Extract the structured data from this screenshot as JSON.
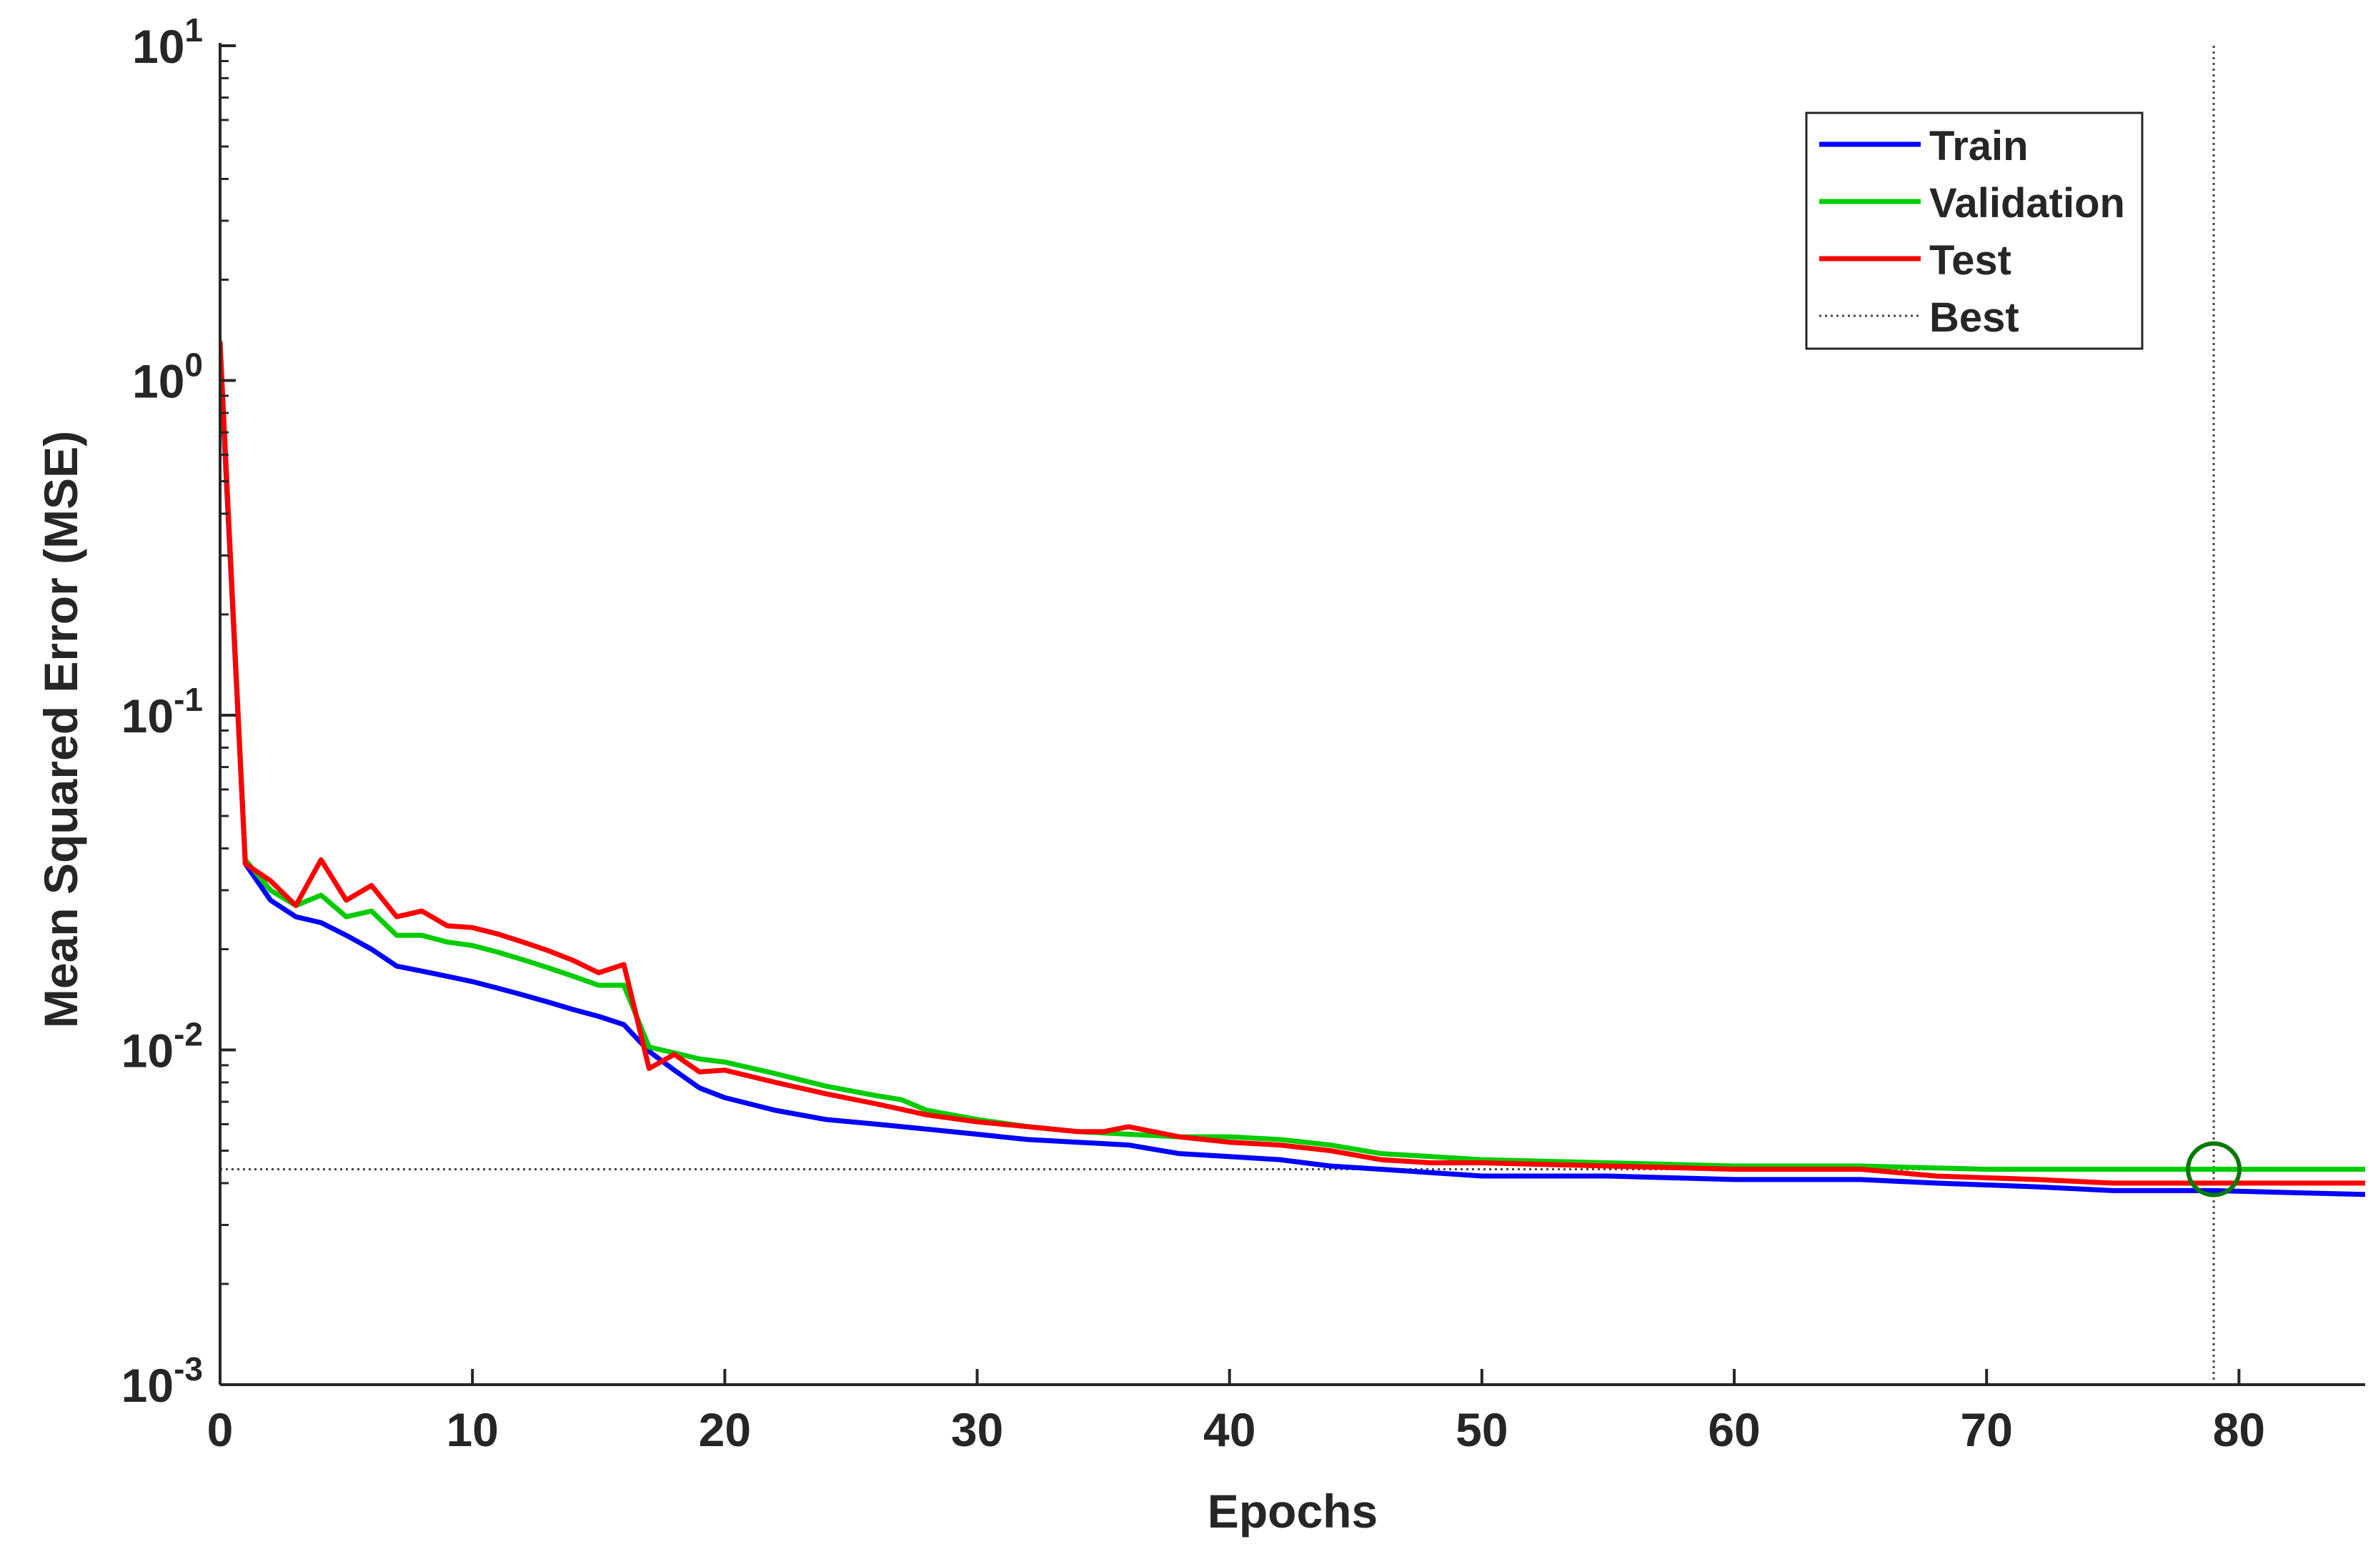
{
  "chart_data": {
    "type": "line",
    "title": "",
    "xlabel": "Epochs",
    "ylabel": "Mean Squared Error  (MSE)",
    "xlim": [
      0,
      85
    ],
    "ylim": [
      0.001,
      10
    ],
    "yscale": "log",
    "grid": false,
    "legend_position": "top-right",
    "x_ticks": [
      0,
      10,
      20,
      30,
      40,
      50,
      60,
      70,
      80
    ],
    "x_tick_labels": [
      "0",
      "10",
      "20",
      "30",
      "40",
      "50",
      "60",
      "70",
      "80"
    ],
    "y_ticks": [
      {
        "value": 10,
        "base": "10",
        "exponent": "1"
      },
      {
        "value": 1,
        "base": "10",
        "exponent": "0"
      },
      {
        "value": 0.1,
        "base": "10",
        "exponent": "-1"
      },
      {
        "value": 0.01,
        "base": "10",
        "exponent": "-2"
      },
      {
        "value": 0.001,
        "base": "10",
        "exponent": "-3"
      }
    ],
    "series": [
      {
        "name": "Train",
        "color": "#0000ff",
        "points": [
          [
            0,
            1.2
          ],
          [
            1,
            0.036
          ],
          [
            2,
            0.028
          ],
          [
            3,
            0.025
          ],
          [
            4,
            0.024
          ],
          [
            5,
            0.022
          ],
          [
            6,
            0.02
          ],
          [
            7,
            0.0178
          ],
          [
            8,
            0.0172
          ],
          [
            9,
            0.0166
          ],
          [
            10,
            0.016
          ],
          [
            11,
            0.0153
          ],
          [
            12,
            0.0146
          ],
          [
            13,
            0.0139
          ],
          [
            14,
            0.0132
          ],
          [
            15,
            0.0126
          ],
          [
            16,
            0.0119
          ],
          [
            17,
            0.0099
          ],
          [
            18,
            0.0087
          ],
          [
            19,
            0.0077
          ],
          [
            20,
            0.0072
          ],
          [
            22,
            0.0066
          ],
          [
            24,
            0.0062
          ],
          [
            26,
            0.006
          ],
          [
            28,
            0.0058
          ],
          [
            30,
            0.0056
          ],
          [
            32,
            0.0054
          ],
          [
            34,
            0.0053
          ],
          [
            36,
            0.0052
          ],
          [
            38,
            0.0049
          ],
          [
            40,
            0.0048
          ],
          [
            42,
            0.0047
          ],
          [
            44,
            0.0045
          ],
          [
            46,
            0.0044
          ],
          [
            48,
            0.0043
          ],
          [
            50,
            0.0042
          ],
          [
            55,
            0.0042
          ],
          [
            60,
            0.0041
          ],
          [
            65,
            0.0041
          ],
          [
            68,
            0.004
          ],
          [
            72,
            0.0039
          ],
          [
            75,
            0.0038
          ],
          [
            79,
            0.0038
          ],
          [
            85,
            0.0037
          ]
        ]
      },
      {
        "name": "Validation",
        "color": "#00cc00",
        "points": [
          [
            0,
            1.25
          ],
          [
            1,
            0.037
          ],
          [
            2,
            0.03
          ],
          [
            3,
            0.027
          ],
          [
            4,
            0.029
          ],
          [
            5,
            0.025
          ],
          [
            6,
            0.026
          ],
          [
            7,
            0.022
          ],
          [
            8,
            0.022
          ],
          [
            9,
            0.021
          ],
          [
            10,
            0.0205
          ],
          [
            11,
            0.0196
          ],
          [
            12,
            0.0186
          ],
          [
            13,
            0.0176
          ],
          [
            14,
            0.0166
          ],
          [
            15,
            0.0156
          ],
          [
            16,
            0.0156
          ],
          [
            17,
            0.0102
          ],
          [
            18,
            0.0098
          ],
          [
            19,
            0.0094
          ],
          [
            20,
            0.0092
          ],
          [
            22,
            0.0085
          ],
          [
            24,
            0.0078
          ],
          [
            26,
            0.0073
          ],
          [
            27,
            0.0071
          ],
          [
            28,
            0.0066
          ],
          [
            30,
            0.0062
          ],
          [
            32,
            0.0059
          ],
          [
            34,
            0.0057
          ],
          [
            36,
            0.0056
          ],
          [
            38,
            0.0055
          ],
          [
            40,
            0.0055
          ],
          [
            42,
            0.0054
          ],
          [
            44,
            0.0052
          ],
          [
            46,
            0.0049
          ],
          [
            48,
            0.0048
          ],
          [
            50,
            0.0047
          ],
          [
            55,
            0.0046
          ],
          [
            60,
            0.0045
          ],
          [
            65,
            0.0045
          ],
          [
            70,
            0.0044
          ],
          [
            79,
            0.0044
          ],
          [
            85,
            0.0044
          ]
        ]
      },
      {
        "name": "Test",
        "color": "#ff0000",
        "points": [
          [
            0,
            1.3
          ],
          [
            1,
            0.036
          ],
          [
            2,
            0.032
          ],
          [
            3,
            0.027
          ],
          [
            4,
            0.037
          ],
          [
            5,
            0.028
          ],
          [
            6,
            0.031
          ],
          [
            7,
            0.025
          ],
          [
            8,
            0.026
          ],
          [
            9,
            0.0235
          ],
          [
            10,
            0.0232
          ],
          [
            11,
            0.0222
          ],
          [
            12,
            0.021
          ],
          [
            13,
            0.0198
          ],
          [
            14,
            0.0185
          ],
          [
            15,
            0.017
          ],
          [
            16,
            0.018
          ],
          [
            17,
            0.0088
          ],
          [
            18,
            0.0097
          ],
          [
            19,
            0.0086
          ],
          [
            20,
            0.0087
          ],
          [
            22,
            0.008
          ],
          [
            24,
            0.0074
          ],
          [
            26,
            0.0069
          ],
          [
            28,
            0.0064
          ],
          [
            30,
            0.0061
          ],
          [
            32,
            0.0059
          ],
          [
            34,
            0.0057
          ],
          [
            35,
            0.0057
          ],
          [
            36,
            0.0059
          ],
          [
            38,
            0.0055
          ],
          [
            40,
            0.0053
          ],
          [
            42,
            0.0052
          ],
          [
            44,
            0.005
          ],
          [
            46,
            0.0047
          ],
          [
            48,
            0.0046
          ],
          [
            50,
            0.0046
          ],
          [
            55,
            0.0045
          ],
          [
            60,
            0.0044
          ],
          [
            65,
            0.0044
          ],
          [
            68,
            0.0042
          ],
          [
            72,
            0.0041
          ],
          [
            75,
            0.004
          ],
          [
            78,
            0.004
          ],
          [
            79,
            0.004
          ],
          [
            85,
            0.004
          ]
        ]
      }
    ],
    "best": {
      "label": "Best",
      "epoch": 79,
      "value": 0.0044,
      "color": "#444444",
      "marker_color": "#007a00"
    }
  }
}
